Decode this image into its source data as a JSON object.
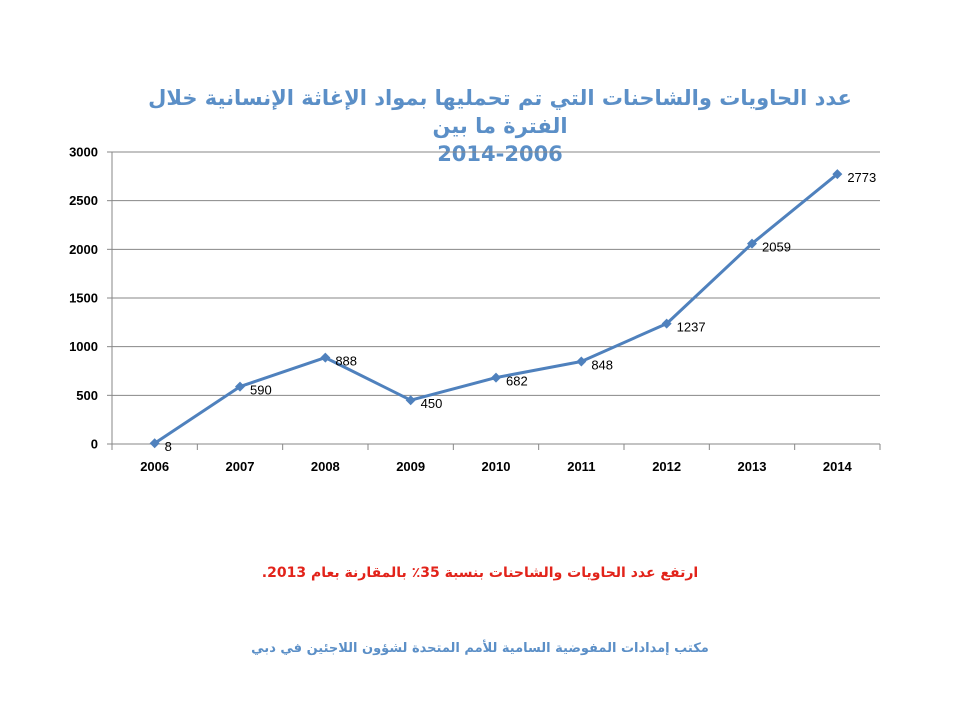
{
  "chart_data": {
    "type": "line",
    "title": "عدد الحاويات والشاحنات التي تم تحمليها بمواد الإغاثة الإنسانية خلال الفترة ما بين",
    "subtitle": "2014-2006",
    "categories": [
      "2006",
      "2007",
      "2008",
      "2009",
      "2010",
      "2011",
      "2012",
      "2013",
      "2014"
    ],
    "values": [
      8,
      590,
      888,
      450,
      682,
      848,
      1237,
      2059,
      2773
    ],
    "ylim": [
      0,
      3000
    ],
    "yticks": [
      0,
      500,
      1000,
      1500,
      2000,
      2500,
      3000
    ],
    "grid": true,
    "legend": "none",
    "data_labels": true,
    "line_color": "#4f81bd",
    "marker": "diamond"
  },
  "note": "ارتفع عدد الحاويات والشاحنات بنسبة 35٪ بالمقارنة بعام 2013.",
  "source": "مكتب إمدادات المفوضية السامية للأمم المتحدة لشؤون اللاجئين في دبي"
}
